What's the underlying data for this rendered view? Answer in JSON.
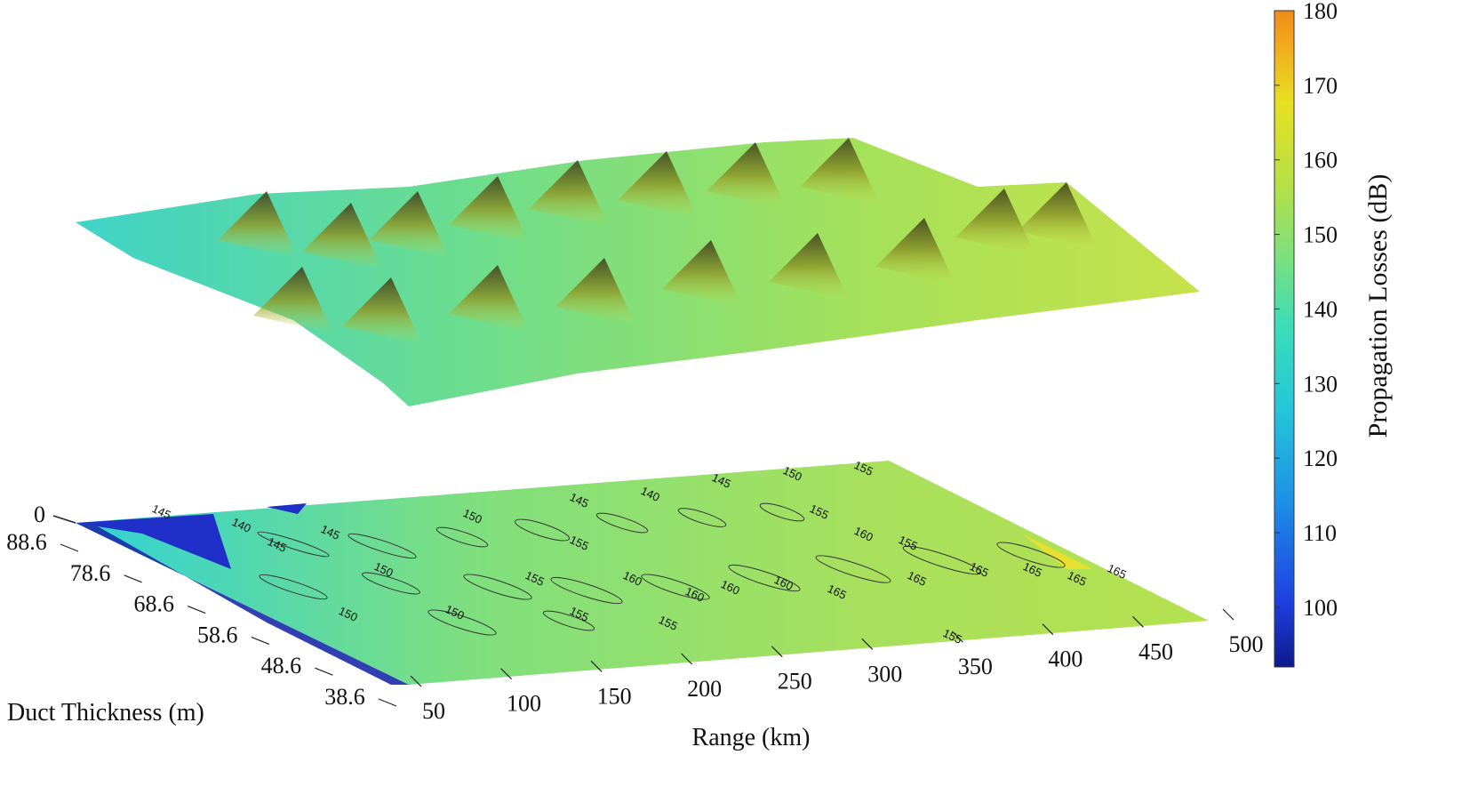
{
  "chart_data": {
    "type": "surface",
    "xlabel": "Range (km)",
    "ylabel": "Duct Thickness (m)",
    "colorbar_label": "Propagation Losses (dB)",
    "x_ticks": [
      50,
      100,
      150,
      200,
      250,
      300,
      350,
      400,
      450,
      500
    ],
    "y_ticks": [
      38.6,
      48.6,
      58.6,
      68.6,
      78.6,
      88.6
    ],
    "z_tick_label": "0",
    "colorbar_ticks": [
      100,
      110,
      120,
      130,
      140,
      150,
      160,
      170,
      180
    ],
    "clim": [
      92,
      180
    ],
    "colormap": [
      "#0d1a8c",
      "#1f40e0",
      "#1e8fe8",
      "#25c8d8",
      "#3ddcb8",
      "#7fe07a",
      "#b8e045",
      "#e8e023",
      "#f2a81d",
      "#f08a1a"
    ],
    "contour_levels": [
      140,
      145,
      150,
      155,
      160,
      165
    ],
    "contour_labels": [
      "145",
      "140",
      "145",
      "145",
      "150",
      "145",
      "140",
      "145",
      "150",
      "155",
      "155",
      "160",
      "160",
      "165",
      "165",
      "165",
      "165",
      "165",
      "165",
      "160",
      "160",
      "160",
      "155",
      "155",
      "155",
      "155",
      "150",
      "150",
      "150",
      "155",
      "155"
    ]
  }
}
